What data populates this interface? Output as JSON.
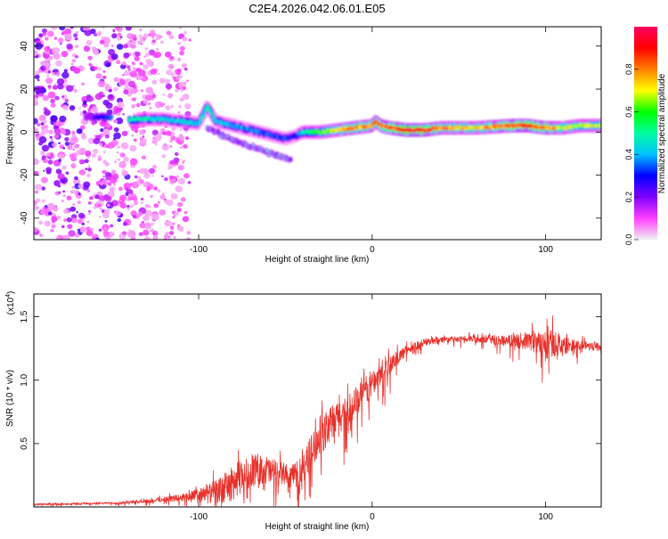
{
  "page": {
    "title": "C2E4.2026.042.06.01.E05"
  },
  "chart_data": [
    {
      "type": "heatmap",
      "title": "C2E4.2026.042.06.01.E05",
      "xlabel": "Height of straight line (km)",
      "ylabel": "Frequency (Hz)",
      "xlim": [
        -195,
        132
      ],
      "ylim": [
        -50,
        49
      ],
      "x_ticks": [
        -100,
        0,
        100
      ],
      "x_tick_labels": [
        "-100",
        "0",
        "100"
      ],
      "y_ticks": [
        -40,
        -20,
        0,
        20,
        40
      ],
      "y_tick_labels": [
        "-40",
        "-20",
        "0",
        "20",
        "40"
      ],
      "colorbar": {
        "label": "Normalized spectral amplitude",
        "range": [
          0,
          1
        ],
        "ticks": [
          0.0,
          0.2,
          0.4,
          0.6,
          0.8
        ],
        "tick_labels": [
          "0.0",
          "0.2",
          "0.4",
          "0.6",
          "0.8"
        ],
        "colormap": [
          "#f0f0f0",
          "#ff40ff",
          "#8000ff",
          "#0000ff",
          "#00c0ff",
          "#00ffa0",
          "#00ff00",
          "#ffff00",
          "#ff8000",
          "#ff0000",
          "#ff0060"
        ]
      },
      "ridge": {
        "description": "dominant frequency ridge (Hz) vs height (km)",
        "x": [
          -165,
          -155,
          -140,
          -130,
          -120,
          -110,
          -100,
          -95,
          -90,
          -80,
          -70,
          -60,
          -50,
          -45,
          -40,
          -30,
          -20,
          -10,
          0,
          2,
          5,
          10,
          20,
          30,
          40,
          60,
          80,
          90,
          100,
          110,
          120,
          132
        ],
        "freq": [
          7,
          7,
          6,
          6,
          6,
          5,
          4,
          12,
          5,
          3,
          1,
          -1,
          -3,
          -2,
          0,
          0,
          1,
          2,
          3,
          5,
          3,
          2,
          1,
          1,
          2,
          2,
          3,
          3,
          2,
          2,
          3,
          3
        ],
        "amplitude": [
          0.3,
          0.3,
          0.5,
          0.5,
          0.45,
          0.45,
          0.45,
          0.5,
          0.45,
          0.4,
          0.4,
          0.35,
          0.35,
          0.3,
          0.5,
          0.65,
          0.75,
          0.85,
          0.8,
          0.85,
          0.85,
          0.9,
          1.0,
          0.95,
          0.8,
          0.75,
          0.9,
          0.95,
          0.85,
          0.75,
          0.7,
          0.7
        ]
      },
      "secondary_branch": {
        "description": "downward-sloping secondary branch",
        "x": [
          -95,
          -85,
          -75,
          -65,
          -55,
          -47
        ],
        "freq": [
          2,
          -2,
          -5,
          -8,
          -11,
          -13
        ]
      }
    },
    {
      "type": "line",
      "xlabel": "Height of straight line (km)",
      "ylabel": "SNR (10 * v/v)",
      "y_multiplier": "(x10",
      "y_multiplier_exponent": "4",
      "y_multiplier_close": ")",
      "xlim": [
        -195,
        132
      ],
      "ylim": [
        0,
        16800
      ],
      "x_ticks": [
        -100,
        0,
        100
      ],
      "x_tick_labels": [
        "-100",
        "0",
        "100"
      ],
      "y_ticks": [
        5000,
        10000,
        15000
      ],
      "y_tick_labels": [
        "0.5",
        "1.0",
        "1.5"
      ],
      "line_color": "#e8302a",
      "series": [
        {
          "name": "SNR",
          "x": [
            -195,
            -170,
            -150,
            -130,
            -120,
            -110,
            -100,
            -95,
            -90,
            -85,
            -80,
            -75,
            -70,
            -65,
            -60,
            -55,
            -50,
            -45,
            -40,
            -35,
            -30,
            -25,
            -20,
            -15,
            -10,
            -5,
            0,
            5,
            10,
            15,
            20,
            30,
            40,
            50,
            60,
            70,
            80,
            90,
            100,
            105,
            110,
            120,
            132
          ],
          "y": [
            200,
            250,
            300,
            450,
            600,
            700,
            900,
            1000,
            1200,
            1500,
            1900,
            2400,
            2800,
            3000,
            2900,
            2700,
            2500,
            2400,
            3000,
            4500,
            5500,
            6300,
            7000,
            7600,
            8200,
            9000,
            9800,
            10500,
            11200,
            11800,
            12400,
            13000,
            13200,
            13200,
            13300,
            13200,
            13100,
            13100,
            12800,
            13000,
            12700,
            12800,
            12600
          ],
          "noise": [
            80,
            80,
            100,
            150,
            250,
            400,
            700,
            900,
            1200,
            1500,
            1700,
            1700,
            1600,
            1500,
            1400,
            1200,
            1100,
            1200,
            1400,
            1600,
            1700,
            1800,
            1700,
            1600,
            1500,
            1400,
            1300,
            1100,
            900,
            700,
            500,
            350,
            300,
            300,
            350,
            450,
            600,
            900,
            1300,
            1400,
            900,
            500,
            400
          ]
        }
      ]
    }
  ]
}
